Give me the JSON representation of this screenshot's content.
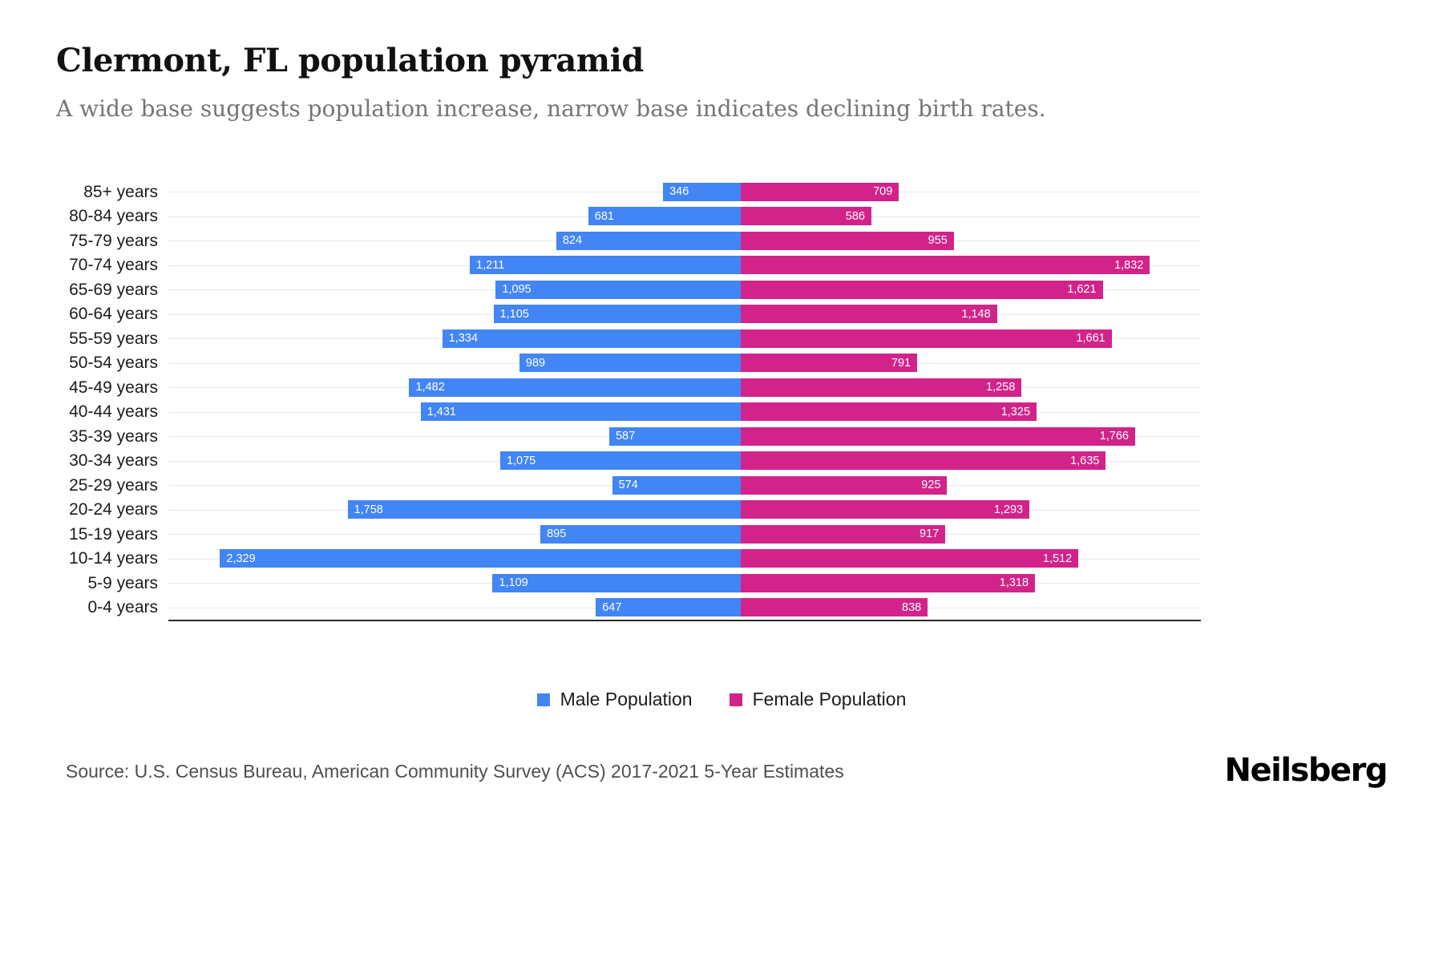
{
  "header": {
    "title": "Clermont, FL population pyramid",
    "subtitle": "A wide base suggests population increase, narrow base indicates declining birth rates."
  },
  "chart_data": {
    "type": "bar",
    "variant": "population-pyramid",
    "orientation": "horizontal",
    "categories": [
      "85+ years",
      "80-84 years",
      "75-79 years",
      "70-74 years",
      "65-69 years",
      "60-64 years",
      "55-59 years",
      "50-54 years",
      "45-49 years",
      "40-44 years",
      "35-39 years",
      "30-34 years",
      "25-29 years",
      "20-24 years",
      "15-19 years",
      "10-14 years",
      "5-9 years",
      "0-4 years"
    ],
    "series": [
      {
        "name": "Male Population",
        "side": "left",
        "color": "#4285f4",
        "values": [
          346,
          681,
          824,
          1211,
          1095,
          1105,
          1334,
          989,
          1482,
          1431,
          587,
          1075,
          574,
          1758,
          895,
          2329,
          1109,
          647
        ]
      },
      {
        "name": "Female Population",
        "side": "right",
        "color": "#d2238a",
        "values": [
          709,
          586,
          955,
          1832,
          1621,
          1148,
          1661,
          791,
          1258,
          1325,
          1766,
          1635,
          925,
          1293,
          917,
          1512,
          1318,
          838
        ]
      }
    ],
    "axis": {
      "male_max": 2560,
      "female_max": 2060
    },
    "grid": true,
    "value_labels": "inside-bar-white",
    "legend_position": "bottom-center",
    "xlabel": "",
    "ylabel": ""
  },
  "legend": [
    {
      "label": "Male Population",
      "color": "#4285f4"
    },
    {
      "label": "Female Population",
      "color": "#d2238a"
    }
  ],
  "footer": {
    "source": "Source: U.S. Census Bureau, American Community Survey (ACS) 2017-2021 5-Year Estimates",
    "brand": "Neilsberg"
  }
}
